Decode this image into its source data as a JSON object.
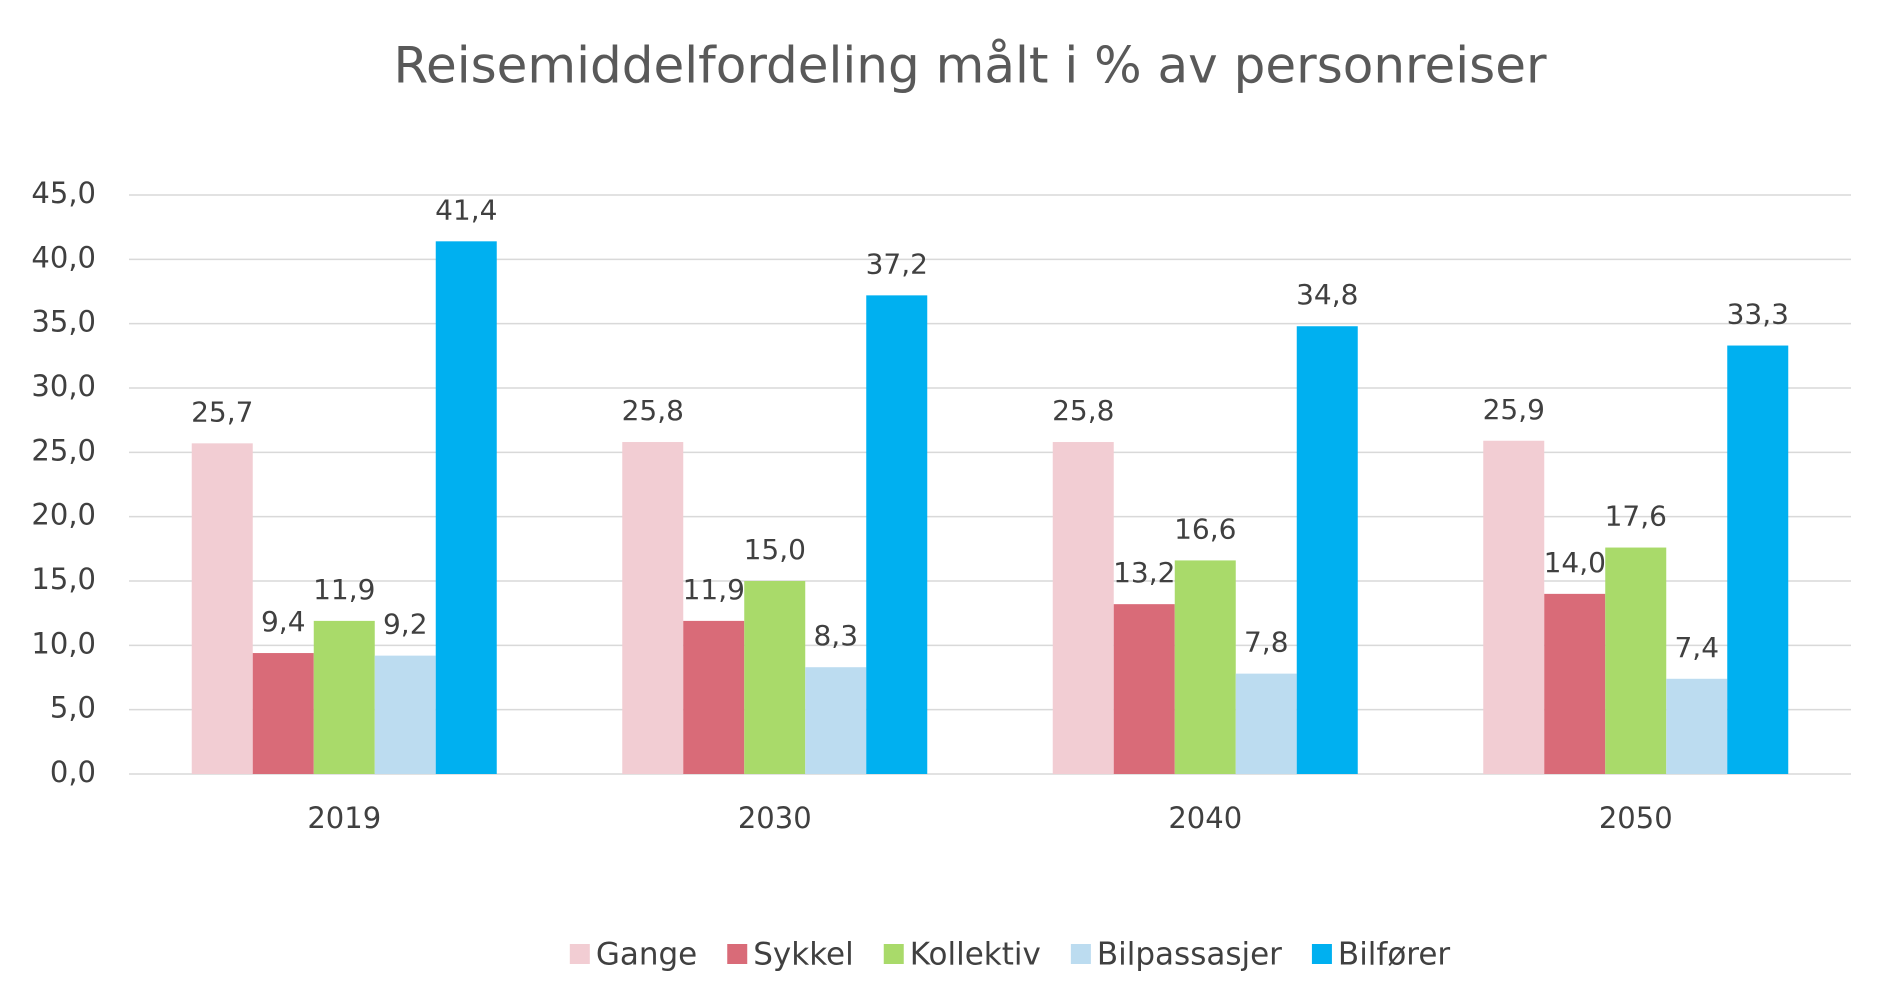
{
  "chart_data": {
    "type": "bar",
    "title": "Reisemiddelfordeling målt i % av personreiser",
    "categories": [
      "2019",
      "2030",
      "2040",
      "2050"
    ],
    "series": [
      {
        "name": "Gange",
        "color": "#f2cdd3",
        "values": [
          25.7,
          25.8,
          25.8,
          25.9
        ],
        "value_labels": [
          "25,7",
          "25,8",
          "25,8",
          "25,9"
        ]
      },
      {
        "name": "Sykkel",
        "color": "#d96b78",
        "values": [
          9.4,
          11.9,
          13.2,
          14.0
        ],
        "value_labels": [
          "9,4",
          "11,9",
          "13,2",
          "14,0"
        ]
      },
      {
        "name": "Kollektiv",
        "color": "#a9da6a",
        "values": [
          11.9,
          15.0,
          16.6,
          17.6
        ],
        "value_labels": [
          "11,9",
          "15,0",
          "16,6",
          "17,6"
        ]
      },
      {
        "name": "Bilpassasjer",
        "color": "#bcdcf0",
        "values": [
          9.2,
          8.3,
          7.8,
          7.4
        ],
        "value_labels": [
          "9,2",
          "8,3",
          "7,8",
          "7,4"
        ]
      },
      {
        "name": "Bilfører",
        "color": "#00b0f0",
        "values": [
          41.4,
          37.2,
          34.8,
          33.3
        ],
        "value_labels": [
          "41,4",
          "37,2",
          "34,8",
          "33,3"
        ]
      }
    ],
    "ylim": [
      0,
      45
    ],
    "yticks": [
      {
        "value": 0,
        "label": "0,0"
      },
      {
        "value": 5,
        "label": "5,0"
      },
      {
        "value": 10,
        "label": "10,0"
      },
      {
        "value": 15,
        "label": "15,0"
      },
      {
        "value": 20,
        "label": "20,0"
      },
      {
        "value": 25,
        "label": "25,0"
      },
      {
        "value": 30,
        "label": "30,0"
      },
      {
        "value": 35,
        "label": "35,0"
      },
      {
        "value": 40,
        "label": "40,0"
      },
      {
        "value": 45,
        "label": "45,0"
      }
    ],
    "grid": true,
    "legend": "bottom"
  }
}
